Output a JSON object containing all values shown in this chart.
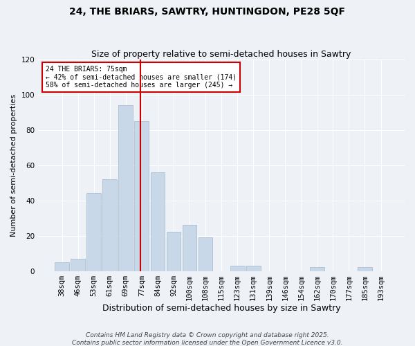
{
  "title1": "24, THE BRIARS, SAWTRY, HUNTINGDON, PE28 5QF",
  "title2": "Size of property relative to semi-detached houses in Sawtry",
  "xlabel": "Distribution of semi-detached houses by size in Sawtry",
  "ylabel": "Number of semi-detached properties",
  "bins": [
    "38sqm",
    "46sqm",
    "53sqm",
    "61sqm",
    "69sqm",
    "77sqm",
    "84sqm",
    "92sqm",
    "100sqm",
    "108sqm",
    "115sqm",
    "123sqm",
    "131sqm",
    "139sqm",
    "146sqm",
    "154sqm",
    "162sqm",
    "170sqm",
    "177sqm",
    "185sqm",
    "193sqm"
  ],
  "values": [
    5,
    7,
    44,
    52,
    94,
    85,
    56,
    22,
    26,
    19,
    0,
    3,
    3,
    0,
    0,
    0,
    2,
    0,
    0,
    2,
    0
  ],
  "bar_color": "#c8d8e8",
  "bar_edge_color": "#a0b8cc",
  "vline_color": "#cc0000",
  "annotation_title": "24 THE BRIARS: 75sqm",
  "annotation_line1": "← 42% of semi-detached houses are smaller (174)",
  "annotation_line2": "58% of semi-detached houses are larger (245) →",
  "annotation_box_color": "#ffffff",
  "annotation_box_edge": "#cc0000",
  "ylim": [
    0,
    120
  ],
  "yticks": [
    0,
    20,
    40,
    60,
    80,
    100,
    120
  ],
  "footnote1": "Contains HM Land Registry data © Crown copyright and database right 2025.",
  "footnote2": "Contains public sector information licensed under the Open Government Licence v3.0.",
  "bg_color": "#eef2f7",
  "grid_color": "#ffffff",
  "title1_fontsize": 10,
  "title2_fontsize": 9,
  "xlabel_fontsize": 9,
  "ylabel_fontsize": 8,
  "tick_fontsize": 7.5,
  "footnote_fontsize": 6.5
}
